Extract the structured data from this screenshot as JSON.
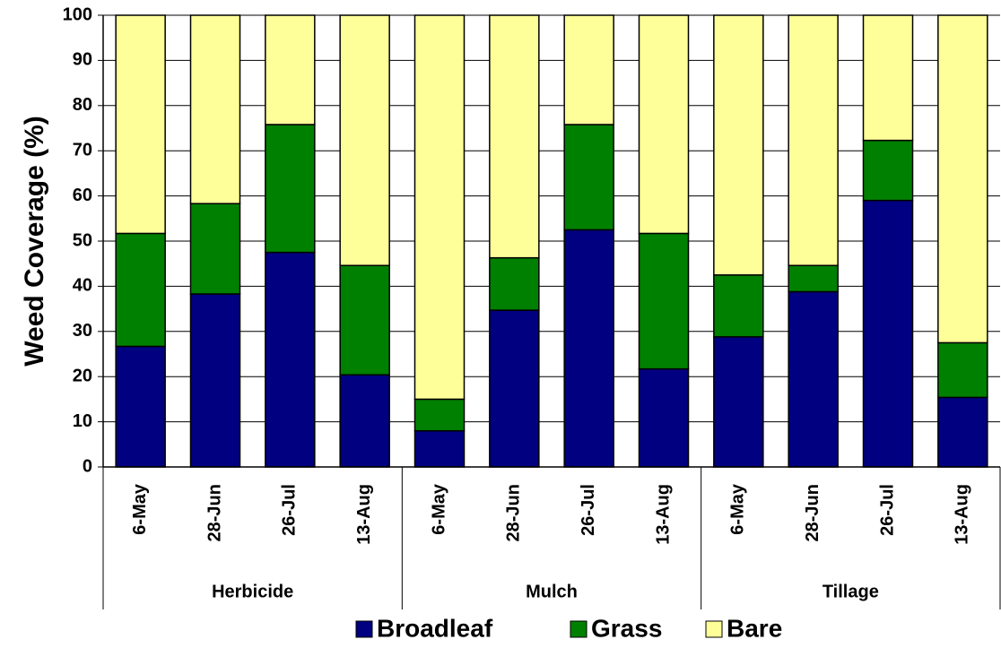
{
  "chart_data": {
    "type": "stacked_bar",
    "ylabel": "Weed Coverage (%)",
    "groups": [
      {
        "label": "Herbicide",
        "categories": [
          "6-May",
          "28-Jun",
          "26-Jul",
          "13-Aug"
        ]
      },
      {
        "label": "Mulch",
        "categories": [
          "6-May",
          "28-Jun",
          "26-Jul",
          "13-Aug"
        ]
      },
      {
        "label": "Tillage",
        "categories": [
          "6-May",
          "28-Jun",
          "26-Jul",
          "13-Aug"
        ]
      }
    ],
    "series": [
      {
        "name": "Broadleaf",
        "color": "#000080",
        "values": [
          26.7,
          38.3,
          47.5,
          20.4,
          8,
          34.7,
          52.5,
          21.7,
          28.8,
          38.8,
          59,
          15.4
        ]
      },
      {
        "name": "Grass",
        "color": "#008000",
        "values": [
          25,
          20,
          28.3,
          24.2,
          7,
          11.6,
          23.3,
          30,
          13.7,
          5.8,
          13.3,
          12.1
        ]
      },
      {
        "name": "Bare",
        "color": "#ffff99",
        "values": [
          48.3,
          41.7,
          24.2,
          55.4,
          85,
          53.7,
          24.2,
          48.3,
          57.5,
          55.4,
          27.7,
          72.5
        ]
      }
    ],
    "ylim": [
      0,
      100
    ],
    "yticks": [
      0,
      10,
      20,
      30,
      40,
      50,
      60,
      70,
      80,
      90,
      100
    ],
    "grid": true
  }
}
